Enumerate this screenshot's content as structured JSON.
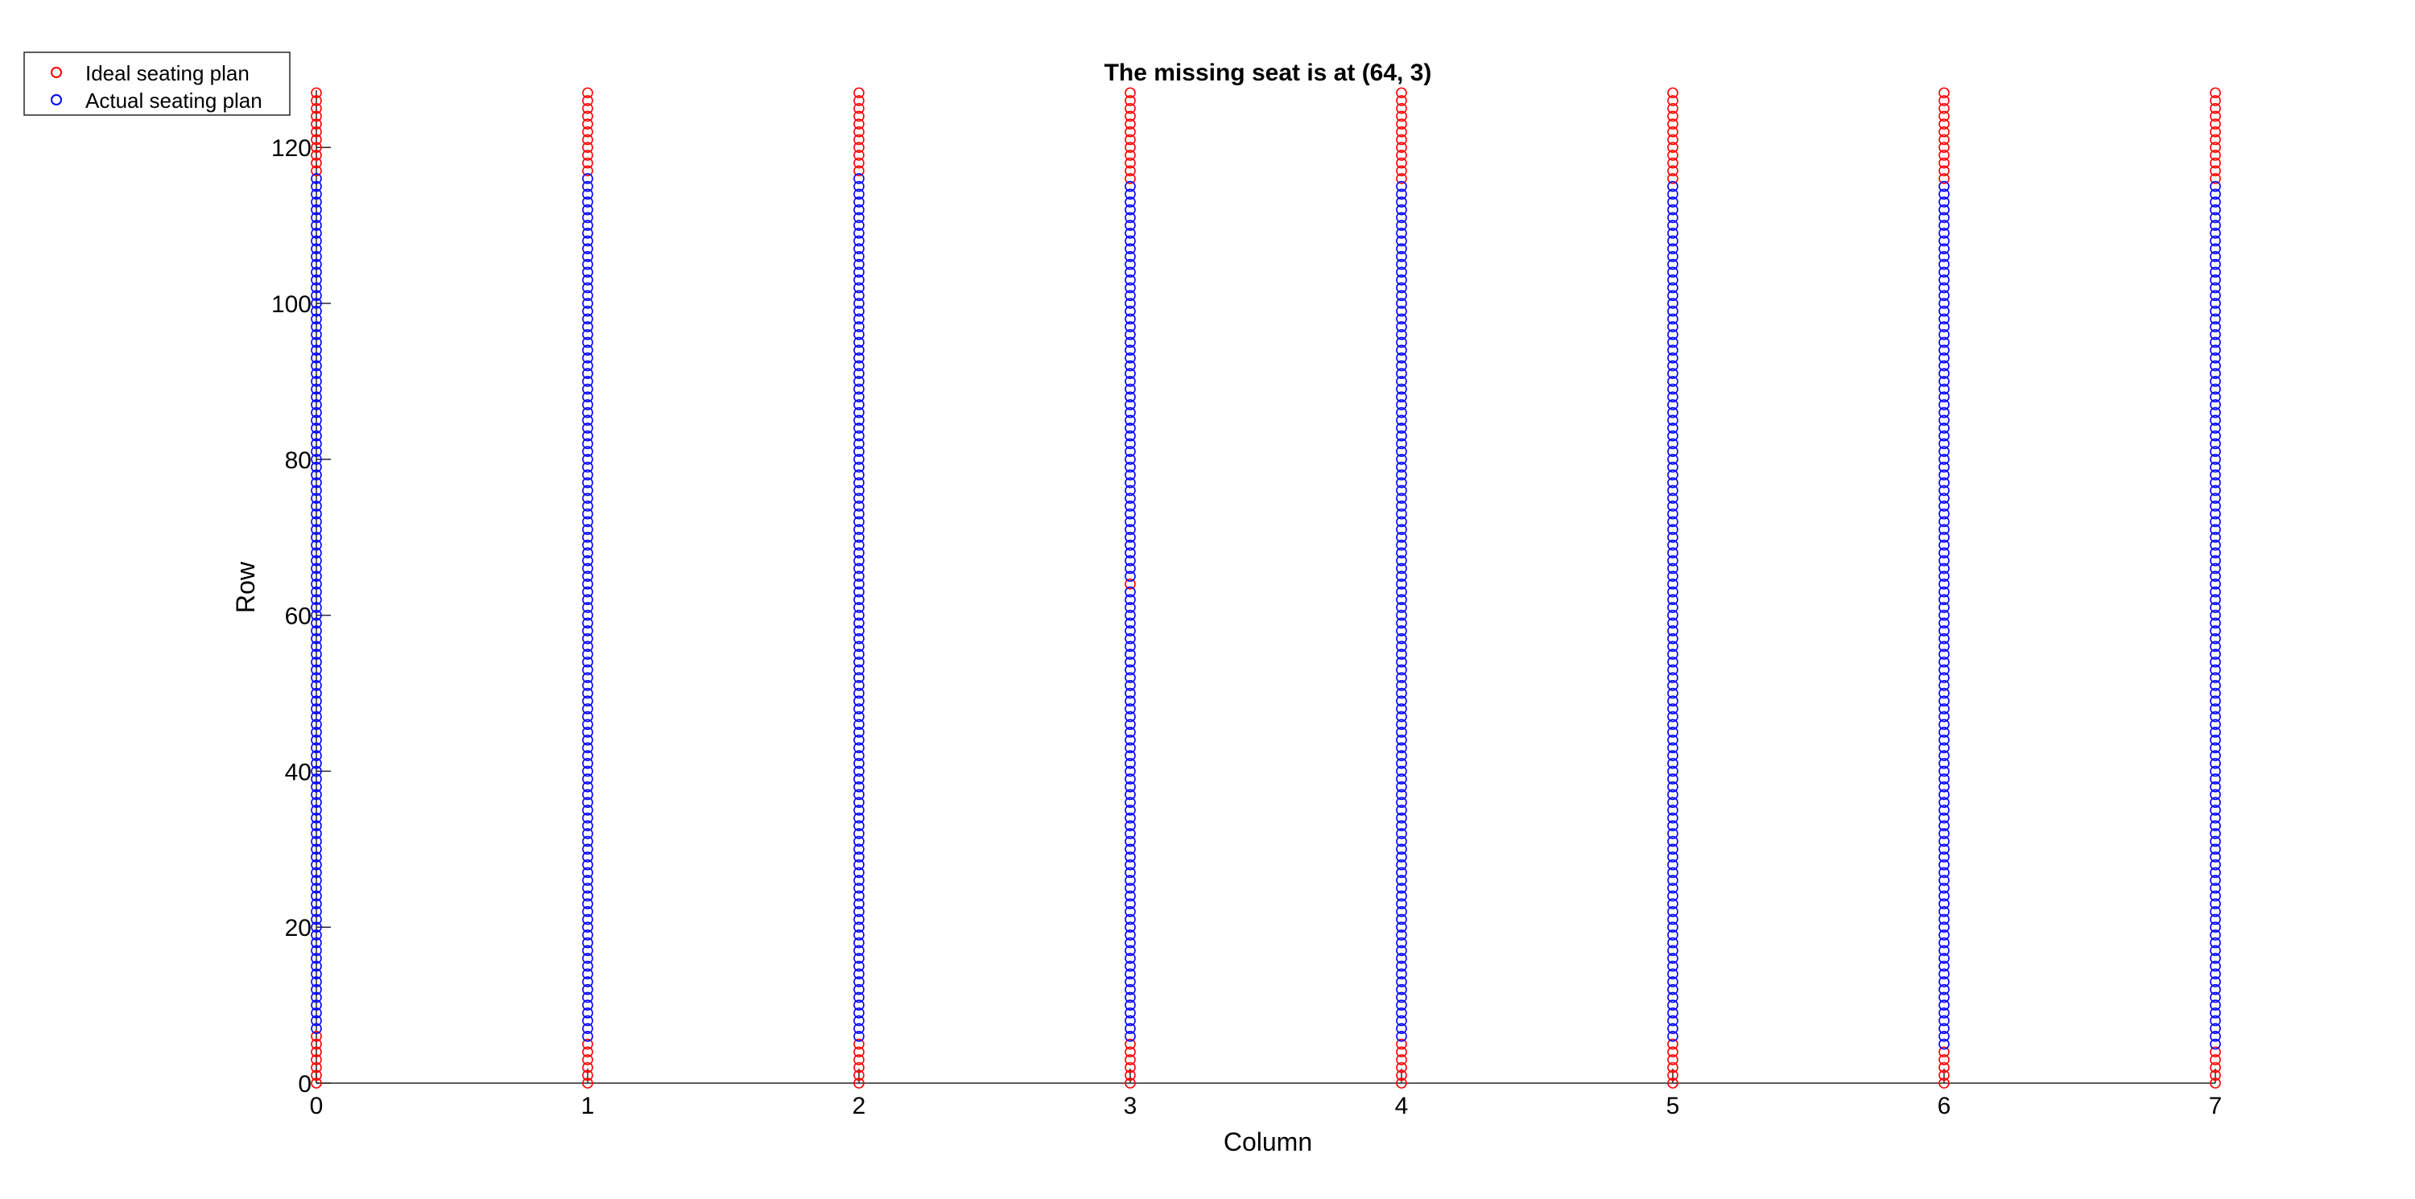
{
  "chart_data": {
    "type": "scatter",
    "title": "The missing seat is at (64, 3)",
    "xlabel": "Column",
    "ylabel": "Row",
    "xlim": [
      0,
      7
    ],
    "ylim": [
      0,
      127
    ],
    "xticks": [
      0,
      1,
      2,
      3,
      4,
      5,
      6,
      7
    ],
    "yticks": [
      0,
      20,
      40,
      60,
      80,
      100,
      120
    ],
    "grid": false,
    "legend_position": "top-left",
    "marker": "open-circle",
    "columns": [
      0,
      1,
      2,
      3,
      4,
      5,
      6,
      7
    ],
    "series": [
      {
        "name": "Ideal seating plan",
        "color": "#ff0000",
        "description_rows": [
          0,
          127
        ],
        "columns": [
          0,
          1,
          2,
          3,
          4,
          5,
          6,
          7
        ]
      },
      {
        "name": "Actual seating plan",
        "color": "#0000ff",
        "occupied_ranges_by_column": [
          {
            "column": 0,
            "from": 7,
            "to": 116
          },
          {
            "column": 1,
            "from": 6,
            "to": 116
          },
          {
            "column": 2,
            "from": 6,
            "to": 116
          },
          {
            "column": 3,
            "from": 6,
            "to": 115
          },
          {
            "column": 4,
            "from": 6,
            "to": 115
          },
          {
            "column": 5,
            "from": 6,
            "to": 115
          },
          {
            "column": 6,
            "from": 5,
            "to": 115
          },
          {
            "column": 7,
            "from": 5,
            "to": 115
          }
        ],
        "missing_seats": [
          {
            "row": 64,
            "column": 3
          }
        ]
      }
    ]
  }
}
